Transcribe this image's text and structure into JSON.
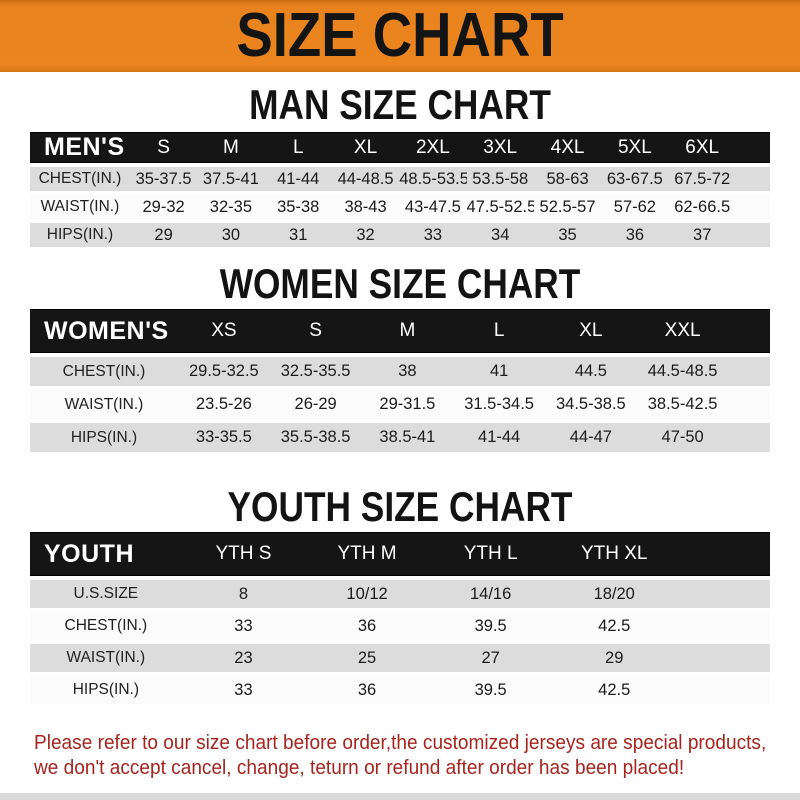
{
  "banner": {
    "title": "SIZE CHART",
    "bg_color": "#E8831E",
    "text_color": "#141414"
  },
  "palette": {
    "header_bar": "#151515",
    "row_gray": "#DCDCDC",
    "row_white": "#FBFBFB"
  },
  "sections": [
    {
      "title": "MAN SIZE CHART",
      "header_label": "MEN'S",
      "columns": [
        "S",
        "M",
        "L",
        "XL",
        "2XL",
        "3XL",
        "4XL",
        "5XL",
        "6XL"
      ],
      "rows": [
        {
          "label": "CHEST(IN.)",
          "values": [
            "35-37.5",
            "37.5-41",
            "41-44",
            "44-48.5",
            "48.5-53.5",
            "53.5-58",
            "58-63",
            "63-67.5",
            "67.5-72"
          ]
        },
        {
          "label": "WAIST(IN.)",
          "values": [
            "29-32",
            "32-35",
            "35-38",
            "38-43",
            "43-47.5",
            "47.5-52.5",
            "52.5-57",
            "57-62",
            "62-66.5"
          ]
        },
        {
          "label": "HIPS(IN.)",
          "values": [
            "29",
            "30",
            "31",
            "32",
            "33",
            "34",
            "35",
            "36",
            "37"
          ]
        }
      ]
    },
    {
      "title": "WOMEN SIZE CHART",
      "header_label": "WOMEN'S",
      "columns": [
        "XS",
        "S",
        "M",
        "L",
        "XL",
        "XXL"
      ],
      "rows": [
        {
          "label": "CHEST(IN.)",
          "values": [
            "29.5-32.5",
            "32.5-35.5",
            "38",
            "41",
            "44.5",
            "44.5-48.5"
          ]
        },
        {
          "label": "WAIST(IN.)",
          "values": [
            "23.5-26",
            "26-29",
            "29-31.5",
            "31.5-34.5",
            "34.5-38.5",
            "38.5-42.5"
          ]
        },
        {
          "label": "HIPS(IN.)",
          "values": [
            "33-35.5",
            "35.5-38.5",
            "38.5-41",
            "41-44",
            "44-47",
            "47-50"
          ]
        }
      ]
    },
    {
      "title": "YOUTH SIZE CHART",
      "header_label": "YOUTH",
      "columns": [
        "YTH S",
        "YTH M",
        "YTH L",
        "YTH XL"
      ],
      "rows": [
        {
          "label": "U.S.SIZE",
          "values": [
            "8",
            "10/12",
            "14/16",
            "18/20"
          ]
        },
        {
          "label": "CHEST(IN.)",
          "values": [
            "33",
            "36",
            "39.5",
            "42.5"
          ]
        },
        {
          "label": "WAIST(IN.)",
          "values": [
            "23",
            "25",
            "27",
            "29"
          ]
        },
        {
          "label": "HIPS(IN.)",
          "values": [
            "33",
            "36",
            "39.5",
            "42.5"
          ]
        }
      ]
    }
  ],
  "footer": {
    "line1": "Please refer to our size chart before order,the customized jerseys are special products,",
    "line2": "we don't accept cancel, change, teturn or refund after order has been placed!",
    "color": "#A5241D"
  }
}
